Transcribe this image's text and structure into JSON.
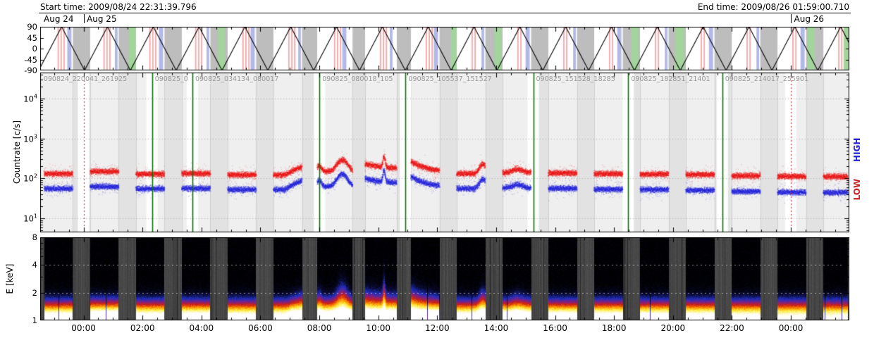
{
  "header": {
    "start_label": "Start time: 2009/08/24 22:31:39.796",
    "end_label": "End time: 2009/08/26 01:59:00.710"
  },
  "colors": {
    "green_line": "#007700",
    "red_dotted": "#cc2222",
    "scatter_low": "#ee1111",
    "scatter_high": "#2222dd",
    "band_gray": "#bdbdbd",
    "band_blue": "#b2b9e6",
    "band_pink": "#f2abab",
    "band_green": "#a2d49c",
    "night_shade": "#e2e2e2",
    "panel_shade": "#efefef",
    "spectro_bg": "#4a4a4a"
  },
  "xaxis": {
    "first_tick_hour_offset": 1.4723,
    "tick_interval_hours": 2,
    "minor_step_hours": 0.5,
    "t_total": 27.456,
    "tick_labels": [
      "00:00",
      "02:00",
      "04:00",
      "06:00",
      "08:00",
      "10:00",
      "12:00",
      "14:00",
      "16:00",
      "18:00",
      "20:00",
      "22:00",
      "00:00"
    ]
  },
  "chart_data": [
    {
      "type": "line",
      "name": "orbit-angle-panel",
      "ylim": [
        -90,
        90
      ],
      "yticks": [
        90,
        45,
        0,
        -45,
        -90
      ],
      "waveform": "triangle",
      "period_hours": 1.555,
      "minimum_at_hours": -0.05,
      "amplitude": 90,
      "date_labels": [
        {
          "label": "Aug 24",
          "t": 0.12
        },
        {
          "label": "Aug 25",
          "t": 1.58
        },
        {
          "label": "Aug 26",
          "t": 25.58
        }
      ],
      "day_tick_times": [
        1.4723,
        25.4723
      ],
      "bands": {
        "gray": [
          [
            1.11,
            1.695
          ],
          [
            2.665,
            3.25
          ],
          [
            4.22,
            4.805
          ],
          [
            5.775,
            6.36
          ],
          [
            7.33,
            7.915
          ],
          [
            8.885,
            9.4
          ],
          [
            10.6,
            11.025
          ],
          [
            12.1,
            12.58
          ],
          [
            13.55,
            14.135
          ],
          [
            15.105,
            15.69
          ],
          [
            16.66,
            17.245
          ],
          [
            18.215,
            18.8
          ],
          [
            19.77,
            20.355
          ],
          [
            21.325,
            21.91
          ],
          [
            22.88,
            23.465
          ],
          [
            24.435,
            25.02
          ],
          [
            25.99,
            26.575
          ]
        ],
        "blue": [
          [
            0.92,
            1.06
          ],
          [
            2.535,
            2.625
          ],
          [
            4.03,
            4.17
          ],
          [
            5.645,
            5.735
          ],
          [
            7.14,
            7.28
          ],
          [
            8.755,
            8.845
          ],
          [
            10.25,
            10.39
          ],
          [
            11.865,
            11.955
          ],
          [
            13.36,
            13.5
          ],
          [
            14.975,
            15.065
          ],
          [
            16.47,
            16.61
          ],
          [
            18.085,
            18.175
          ],
          [
            19.58,
            19.72
          ],
          [
            21.195,
            21.285
          ],
          [
            22.69,
            22.83
          ],
          [
            24.305,
            24.395
          ],
          [
            25.8,
            25.94
          ],
          [
            27.355,
            27.445
          ]
        ],
        "pink": [
          [
            0.59,
            0.635
          ],
          [
            0.69,
            0.735
          ],
          [
            0.79,
            0.835
          ],
          [
            2.145,
            2.19
          ],
          [
            2.245,
            2.29
          ],
          [
            2.345,
            2.39
          ],
          [
            3.7,
            3.745
          ],
          [
            3.8,
            3.845
          ],
          [
            3.9,
            3.945
          ],
          [
            5.255,
            5.3
          ],
          [
            5.355,
            5.4
          ],
          [
            5.455,
            5.5
          ],
          [
            6.86,
            6.905
          ],
          [
            6.96,
            7.005
          ],
          [
            7.06,
            7.105
          ],
          [
            8.415,
            8.46
          ],
          [
            8.515,
            8.56
          ],
          [
            8.615,
            8.66
          ],
          [
            9.97,
            10.015
          ],
          [
            10.07,
            10.115
          ],
          [
            10.17,
            10.215
          ],
          [
            11.525,
            11.57
          ],
          [
            11.625,
            11.67
          ],
          [
            11.725,
            11.77
          ],
          [
            13.08,
            13.125
          ],
          [
            13.18,
            13.225
          ],
          [
            13.28,
            13.325
          ],
          [
            14.635,
            14.68
          ],
          [
            14.735,
            14.78
          ],
          [
            16.19,
            16.235
          ],
          [
            16.29,
            16.335
          ],
          [
            17.745,
            17.79
          ],
          [
            17.845,
            17.89
          ],
          [
            19.3,
            19.345
          ],
          [
            19.4,
            19.445
          ],
          [
            20.855,
            20.9
          ],
          [
            20.955,
            21.0
          ],
          [
            22.41,
            22.455
          ],
          [
            22.51,
            22.555
          ],
          [
            23.965,
            24.01
          ],
          [
            24.065,
            24.11
          ],
          [
            25.52,
            25.565
          ],
          [
            25.62,
            25.665
          ],
          [
            27.075,
            27.12
          ],
          [
            27.175,
            27.22
          ]
        ],
        "green": [
          [
            3.0,
            3.24
          ],
          [
            6.03,
            6.27
          ],
          [
            13.94,
            14.13
          ],
          [
            15.42,
            15.66
          ],
          [
            20.05,
            20.3
          ],
          [
            21.55,
            21.85
          ],
          [
            26.04,
            26.28
          ],
          [
            27.26,
            27.456
          ]
        ]
      }
    },
    {
      "type": "scatter",
      "name": "countrate-panel",
      "ylabel": "Countrate [c/s]",
      "yscale": "log10",
      "ylim_log10": [
        0.65,
        4.65
      ],
      "ytick_labels": [
        {
          "base": "10",
          "exp": "1",
          "value": 10
        },
        {
          "base": "10",
          "exp": "2",
          "value": 100
        },
        {
          "base": "10",
          "exp": "3",
          "value": 1000
        },
        {
          "base": "10",
          "exp": "4",
          "value": 10000
        }
      ],
      "right_labels": [
        {
          "text": "LOW",
          "color": "#cc2222"
        },
        {
          "text": "HIGH",
          "color": "#2222dd"
        }
      ],
      "series": [
        {
          "name": "LOW",
          "color": "#ee1111",
          "description": "low-energy countrate, upper band ~120 c/s"
        },
        {
          "name": "HIGH",
          "color": "#2222dd",
          "description": "high-energy countrate, lower band ~52 c/s"
        }
      ],
      "green_lines": [
        3.796,
        5.165,
        9.477,
        12.399,
        16.73,
        19.953,
        23.144
      ],
      "red_dotted_lines": [
        1.4723,
        25.4723
      ],
      "interval_labels": [
        {
          "t": 0.02,
          "end": 3.796,
          "text": "090824_220041_261925"
        },
        {
          "t": 3.796,
          "end": 5.165,
          "text": "090825_0"
        },
        {
          "t": 5.165,
          "end": 9.477,
          "text": "090825_034134_080017"
        },
        {
          "t": 9.477,
          "end": 12.399,
          "text": "090825_080018_105"
        },
        {
          "t": 12.399,
          "end": 16.73,
          "text": "090825_105537_151527"
        },
        {
          "t": 16.73,
          "end": 19.953,
          "text": "090825_151528_18285"
        },
        {
          "t": 19.953,
          "end": 23.144,
          "text": "090825_182851_21401"
        },
        {
          "t": 23.144,
          "end": 27.456,
          "text": "090825_214017_255901"
        }
      ],
      "segments": [
        {
          "start": 0.14,
          "end": 1.11,
          "red": 130,
          "blue": 55
        },
        {
          "start": 1.695,
          "end": 2.665,
          "red": 148,
          "blue": 62
        },
        {
          "start": 3.25,
          "end": 4.22,
          "red": 128,
          "blue": 55
        },
        {
          "start": 4.805,
          "end": 5.775,
          "red": 132,
          "blue": 56
        },
        {
          "start": 6.36,
          "end": 7.33,
          "red": 122,
          "blue": 52
        },
        {
          "start": 7.915,
          "end": 8.885,
          "red": 122,
          "blue": 52,
          "features": [
            {
              "type": "ramp",
              "t0": 8.3,
              "t1": 8.885,
              "red": 195,
              "blue": 88
            }
          ]
        },
        {
          "start": 9.4,
          "end": 10.6,
          "red": 150,
          "blue": 62,
          "features": [
            {
              "type": "bump",
              "t": 9.47,
              "w": 0.1,
              "red": 205,
              "blue": 90
            },
            {
              "type": "bump",
              "t": 10.25,
              "w": 0.22,
              "red": 295,
              "blue": 128
            }
          ]
        },
        {
          "start": 11.025,
          "end": 12.1,
          "red": 175,
          "blue": 75,
          "features": [
            {
              "type": "spike",
              "t": 11.67,
              "w": 0.05,
              "red": 340,
              "blue": 150
            },
            {
              "type": "decay",
              "tau": 0.5,
              "red": 230,
              "blue": 100
            }
          ]
        },
        {
          "start": 12.58,
          "end": 13.55,
          "red": 145,
          "blue": 60,
          "features": [
            {
              "type": "decay",
              "tau": 0.45,
              "red": 265,
              "blue": 110
            }
          ]
        },
        {
          "start": 14.135,
          "end": 15.105,
          "red": 130,
          "blue": 55,
          "features": [
            {
              "type": "bump",
              "t": 15.02,
              "w": 0.15,
              "red": 225,
              "blue": 95
            }
          ]
        },
        {
          "start": 15.69,
          "end": 16.66,
          "red": 140,
          "blue": 58,
          "features": [
            {
              "type": "bump",
              "t": 16.2,
              "w": 0.2,
              "red": 172,
              "blue": 70
            }
          ]
        },
        {
          "start": 17.245,
          "end": 18.215,
          "red": 135,
          "blue": 56
        },
        {
          "start": 18.8,
          "end": 19.77,
          "red": 130,
          "blue": 53
        },
        {
          "start": 20.355,
          "end": 21.325,
          "red": 127,
          "blue": 52
        },
        {
          "start": 21.91,
          "end": 22.88,
          "red": 124,
          "blue": 50
        },
        {
          "start": 23.465,
          "end": 24.435,
          "red": 116,
          "blue": 47
        },
        {
          "start": 25.02,
          "end": 25.99,
          "red": 112,
          "blue": 45
        },
        {
          "start": 26.575,
          "end": 27.4,
          "red": 110,
          "blue": 44
        }
      ]
    },
    {
      "type": "heatmap",
      "name": "spectrogram-panel",
      "ylabel": "E [keV]",
      "yscale": "log2",
      "ylim": [
        1,
        8
      ],
      "yticks": [
        1,
        2,
        4,
        8
      ],
      "gridlines_kev": [
        2,
        4
      ],
      "band_center_kev": 1.07,
      "band_sigma": 0.4,
      "palette": [
        "#000000",
        "#0a0a30",
        "#2030c0",
        "#802080",
        "#d02010",
        "#ff9900",
        "#ffee44",
        "#ffffff"
      ]
    }
  ]
}
